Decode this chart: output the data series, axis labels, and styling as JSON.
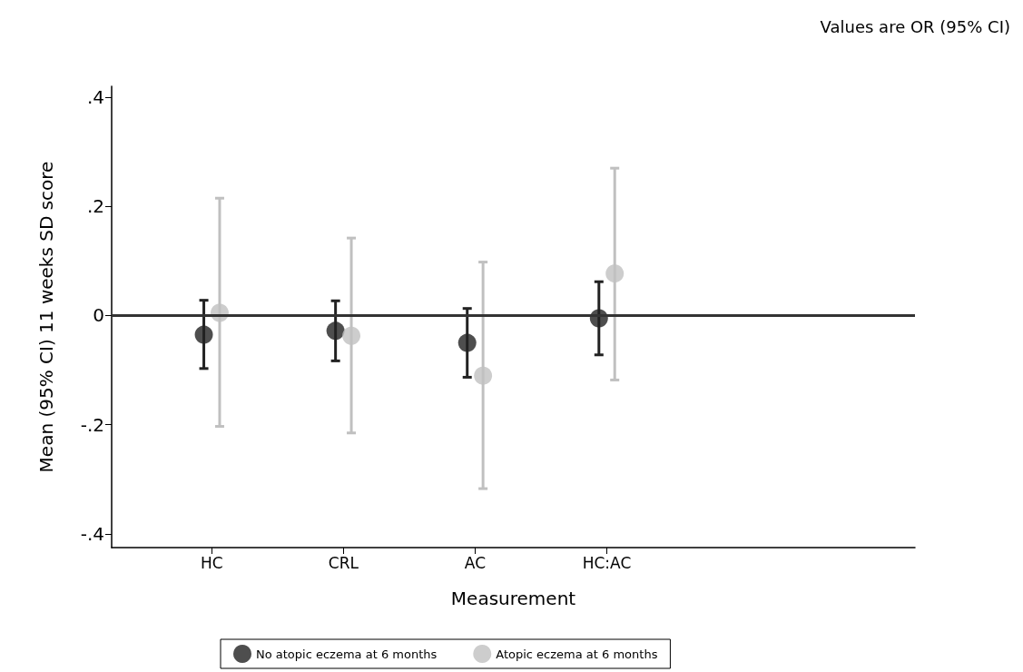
{
  "chart_data": {
    "type": "scatter",
    "xlabel": "Measurement",
    "ylabel": "Mean (95% CI) 11 weeks SD score",
    "annotations": [
      "Values are OR (95% CI)"
    ],
    "categories": [
      "HC",
      "CRL",
      "AC",
      "HC:AC"
    ],
    "series": [
      {
        "name": "No atopic eczema at 6 months",
        "color": "#222222",
        "values": [
          -0.035,
          -0.028,
          -0.05,
          -0.005
        ],
        "errors": [
          [
            -0.097,
            0.028
          ],
          [
            -0.083,
            0.027
          ],
          [
            -0.113,
            0.013
          ],
          [
            -0.072,
            0.062
          ]
        ]
      },
      {
        "name": "Atopic eczema at 6 months",
        "color": "#c0c0c0",
        "values": [
          0.005,
          -0.037,
          -0.11,
          0.077
        ],
        "errors": [
          [
            -0.203,
            0.215
          ],
          [
            -0.215,
            0.142
          ],
          [
            -0.317,
            0.098
          ],
          [
            -0.118,
            0.27
          ]
        ]
      }
    ],
    "ylim": [
      -0.425,
      0.42
    ],
    "yticks": [
      {
        "value": -0.4,
        "label": "-.4"
      },
      {
        "value": -0.2,
        "label": "-.2"
      },
      0,
      {
        "value": 0.2,
        "label": ".2"
      },
      {
        "value": 0.4,
        "label": ".4"
      }
    ],
    "ref_lines": [
      {
        "axis": "y",
        "value": 0,
        "color": "#333333"
      }
    ],
    "marker": "circle",
    "legend": "bottom",
    "grid": false
  }
}
